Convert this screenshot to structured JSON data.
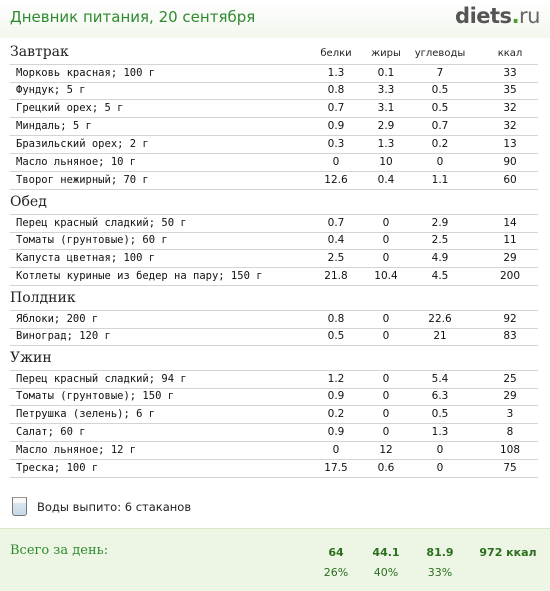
{
  "header": {
    "title": "Дневник питания, 20 сентября",
    "logo": {
      "brand": "diets",
      "dot": ".",
      "tld": "ru"
    }
  },
  "columns": {
    "protein": "белки",
    "fat": "жиры",
    "carbs": "углеводы",
    "kcal": "ккал"
  },
  "sections": [
    {
      "title": "Завтрак",
      "items": [
        {
          "name": "Морковь красная; 100 г",
          "protein": "1.3",
          "fat": "0.1",
          "carbs": "7",
          "kcal": "33"
        },
        {
          "name": "Фундук; 5 г",
          "protein": "0.8",
          "fat": "3.3",
          "carbs": "0.5",
          "kcal": "35"
        },
        {
          "name": "Грецкий орех; 5 г",
          "protein": "0.7",
          "fat": "3.1",
          "carbs": "0.5",
          "kcal": "32"
        },
        {
          "name": "Миндаль; 5 г",
          "protein": "0.9",
          "fat": "2.9",
          "carbs": "0.7",
          "kcal": "32"
        },
        {
          "name": "Бразильский орех; 2 г",
          "protein": "0.3",
          "fat": "1.3",
          "carbs": "0.2",
          "kcal": "13"
        },
        {
          "name": "Масло льняное; 10 г",
          "protein": "0",
          "fat": "10",
          "carbs": "0",
          "kcal": "90"
        },
        {
          "name": "Творог нежирный; 70 г",
          "protein": "12.6",
          "fat": "0.4",
          "carbs": "1.1",
          "kcal": "60"
        }
      ]
    },
    {
      "title": "Обед",
      "items": [
        {
          "name": "Перец красный сладкий; 50 г",
          "protein": "0.7",
          "fat": "0",
          "carbs": "2.9",
          "kcal": "14"
        },
        {
          "name": "Томаты (грунтовые); 60 г",
          "protein": "0.4",
          "fat": "0",
          "carbs": "2.5",
          "kcal": "11"
        },
        {
          "name": "Капуста цветная; 100 г",
          "protein": "2.5",
          "fat": "0",
          "carbs": "4.9",
          "kcal": "29"
        },
        {
          "name": "Котлеты куриные из бедер на пару; 150 г",
          "protein": "21.8",
          "fat": "10.4",
          "carbs": "4.5",
          "kcal": "200"
        }
      ]
    },
    {
      "title": "Полдник",
      "items": [
        {
          "name": "Яблоки; 200 г",
          "protein": "0.8",
          "fat": "0",
          "carbs": "22.6",
          "kcal": "92"
        },
        {
          "name": "Виноград; 120 г",
          "protein": "0.5",
          "fat": "0",
          "carbs": "21",
          "kcal": "83"
        }
      ]
    },
    {
      "title": "Ужин",
      "items": [
        {
          "name": "Перец красный сладкий; 94 г",
          "protein": "1.2",
          "fat": "0",
          "carbs": "5.4",
          "kcal": "25"
        },
        {
          "name": "Томаты (грунтовые); 150 г",
          "protein": "0.9",
          "fat": "0",
          "carbs": "6.3",
          "kcal": "29"
        },
        {
          "name": "Петрушка (зелень); 6 г",
          "protein": "0.2",
          "fat": "0",
          "carbs": "0.5",
          "kcal": "3"
        },
        {
          "name": "Салат; 60 г",
          "protein": "0.9",
          "fat": "0",
          "carbs": "1.3",
          "kcal": "8"
        },
        {
          "name": "Масло льняное; 12 г",
          "protein": "0",
          "fat": "12",
          "carbs": "0",
          "kcal": "108"
        },
        {
          "name": "Треска; 100 г",
          "protein": "17.5",
          "fat": "0.6",
          "carbs": "0",
          "kcal": "75"
        }
      ]
    }
  ],
  "water": {
    "icon": "glass-icon",
    "text": "Воды выпито: 6 стаканов"
  },
  "totals": {
    "label": "Всего за день:",
    "protein": "64",
    "fat": "44.1",
    "carbs": "81.9",
    "kcal": "972 ккал",
    "protein_pct": "26%",
    "fat_pct": "40%",
    "carbs_pct": "33%"
  }
}
